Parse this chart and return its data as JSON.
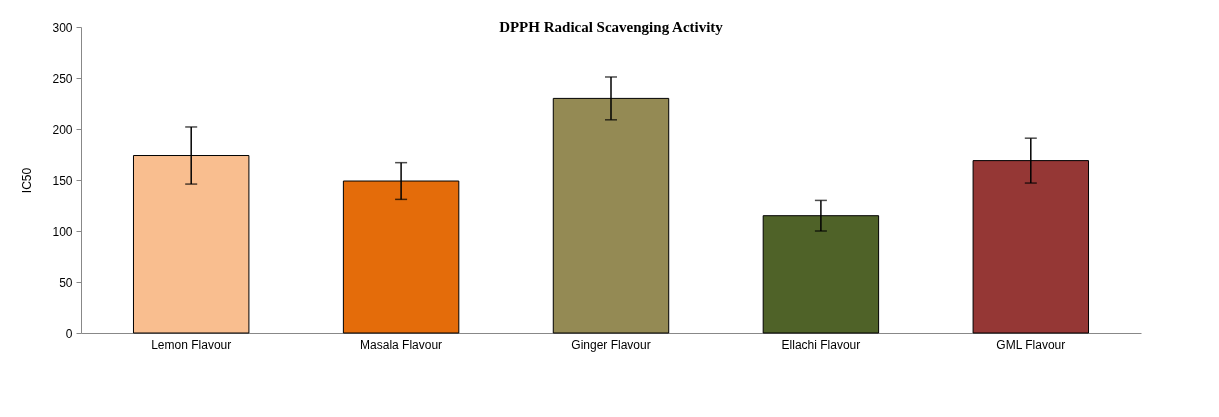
{
  "chart_data": {
    "type": "bar",
    "title": "DPPH Radical Scavenging Activity",
    "ylabel": "IC50",
    "categories": [
      "Lemon Flavour",
      "Masala Flavour",
      "Ginger Flavour",
      "Ellachi Flavour",
      "GML Flavour"
    ],
    "values": [
      174,
      149,
      230,
      115,
      169
    ],
    "colors": [
      "#f9be8f",
      "#e46c0a",
      "#948a54",
      "#4f6228",
      "#953735"
    ],
    "errors": [
      28,
      18,
      21,
      15,
      22
    ],
    "ylim": [
      0,
      300
    ],
    "yticks": [
      0,
      50,
      100,
      150,
      200,
      250,
      300
    ],
    "grid": false
  }
}
